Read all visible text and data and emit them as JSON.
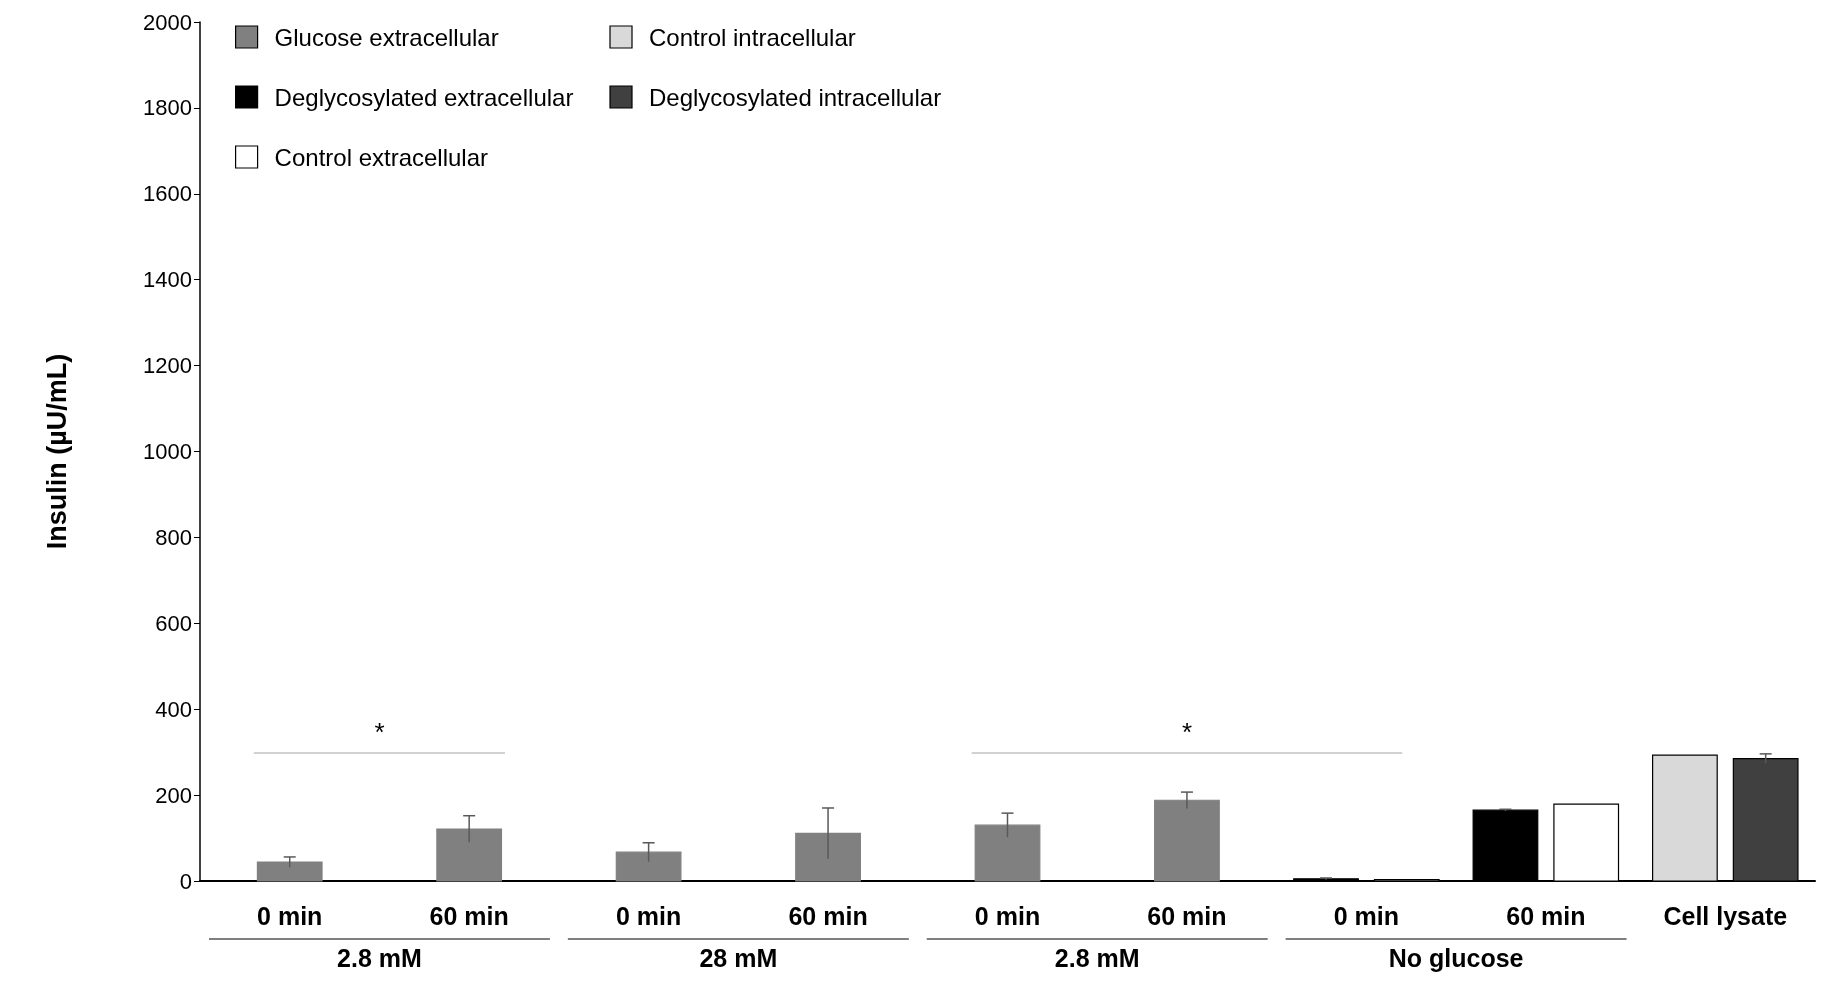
{
  "chart_data": {
    "type": "bar",
    "ylabel": "Insulin (µU/mL)",
    "categories": [
      "0 min",
      "60 min",
      "0 min",
      "60 min",
      "0 min",
      "60 min",
      "0 min",
      "60 min",
      "Cell lysate"
    ],
    "series": [
      {
        "name": "Glucose extracellular",
        "color": "#808080",
        "values": [
          44,
          121,
          67,
          111,
          130,
          188,
          null,
          null,
          null
        ],
        "errors": [
          12,
          31,
          22,
          59,
          28,
          19,
          null,
          null,
          null
        ]
      },
      {
        "name": "Deglycosylated extracellular",
        "color": "#000000",
        "values": [
          null,
          null,
          null,
          null,
          null,
          null,
          5,
          165,
          null
        ],
        "errors": [
          null,
          null,
          null,
          null,
          null,
          null,
          2,
          2,
          null
        ]
      },
      {
        "name": "Control extracellular",
        "color": "#ffffff",
        "values": [
          null,
          null,
          null,
          null,
          null,
          null,
          3,
          179,
          null
        ]
      },
      {
        "name": "Control intracellular",
        "color": "#d9d9d9",
        "values": [
          null,
          null,
          null,
          null,
          null,
          null,
          null,
          null,
          293
        ]
      },
      {
        "name": "Deglycosylated intracellular",
        "color": "#404040",
        "values": [
          null,
          null,
          null,
          null,
          null,
          null,
          null,
          null,
          285
        ],
        "errors": [
          null,
          null,
          null,
          null,
          null,
          null,
          null,
          null,
          11
        ]
      }
    ],
    "ylim": [
      0,
      2000
    ],
    "yticks": [
      0,
      200,
      400,
      600,
      800,
      1000,
      1200,
      1400,
      1600,
      1800,
      2000
    ],
    "grid": false,
    "legend": "top left",
    "annotations": [
      "2.8 mM",
      "28 mM",
      "2.8 mM",
      "No glucose",
      "*",
      "*"
    ]
  }
}
